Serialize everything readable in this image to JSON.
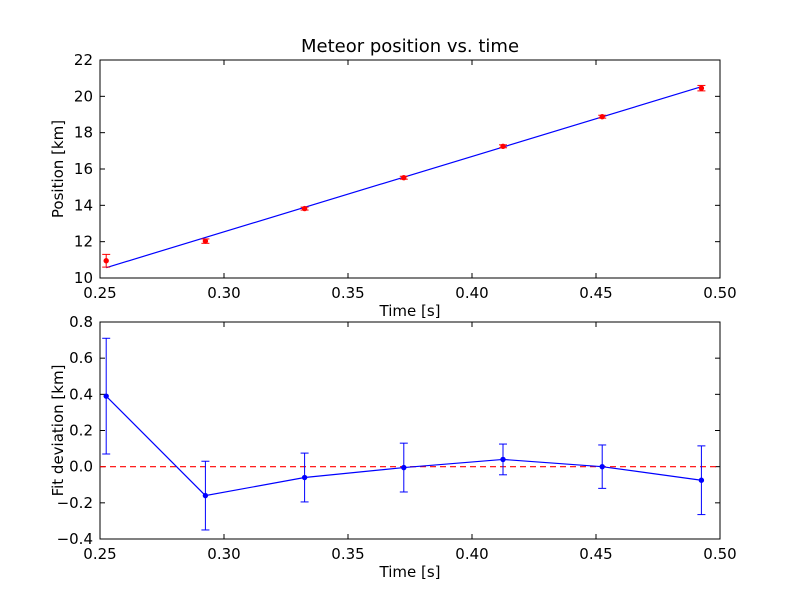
{
  "chart_data": [
    {
      "type": "scatter",
      "title": "Meteor position vs. time",
      "xlabel": "Time [s]",
      "ylabel": "Position [km]",
      "xlim": [
        0.25,
        0.5
      ],
      "ylim": [
        10,
        22
      ],
      "grid": false,
      "x_ticks": [
        0.25,
        0.3,
        0.35,
        0.4,
        0.45,
        0.5
      ],
      "x_tick_labels": [
        "0.25",
        "0.30",
        "0.35",
        "0.40",
        "0.45",
        "0.50"
      ],
      "y_ticks": [
        10,
        12,
        14,
        16,
        18,
        20,
        22
      ],
      "y_tick_labels": [
        "10",
        "12",
        "14",
        "16",
        "18",
        "20",
        "22"
      ],
      "points": {
        "x": [
          0.2525,
          0.2925,
          0.3325,
          0.3725,
          0.4125,
          0.4525,
          0.4925
        ],
        "y": [
          10.95,
          12.03,
          13.82,
          15.52,
          17.25,
          18.88,
          20.45
        ],
        "yerr": [
          0.35,
          0.12,
          0.08,
          0.08,
          0.08,
          0.08,
          0.15
        ],
        "color": "#ff0000"
      },
      "fit_line": {
        "x": [
          0.2525,
          0.4925
        ],
        "y": [
          10.57,
          20.53
        ],
        "color": "#0000ff"
      }
    },
    {
      "type": "line",
      "title": "",
      "xlabel": "Time [s]",
      "ylabel": "Fit deviation [km]",
      "xlim": [
        0.25,
        0.5
      ],
      "ylim": [
        -0.4,
        0.8
      ],
      "grid": false,
      "x_ticks": [
        0.25,
        0.3,
        0.35,
        0.4,
        0.45,
        0.5
      ],
      "x_tick_labels": [
        "0.25",
        "0.30",
        "0.35",
        "0.40",
        "0.45",
        "0.50"
      ],
      "y_ticks": [
        -0.4,
        -0.2,
        0.0,
        0.2,
        0.4,
        0.6,
        0.8
      ],
      "y_tick_labels": [
        "−0.4",
        "−0.2",
        "0.0",
        "0.2",
        "0.4",
        "0.6",
        "0.8"
      ],
      "series": {
        "x": [
          0.2525,
          0.2925,
          0.3325,
          0.3725,
          0.4125,
          0.4525,
          0.4925
        ],
        "y": [
          0.39,
          -0.16,
          -0.06,
          -0.005,
          0.04,
          0.0,
          -0.075
        ],
        "yerr": [
          0.32,
          0.19,
          0.135,
          0.135,
          0.085,
          0.12,
          0.19
        ],
        "color": "#0000ff"
      },
      "reference_line": {
        "y": 0.0,
        "color": "#ff0000",
        "style": "dashed"
      }
    }
  ]
}
